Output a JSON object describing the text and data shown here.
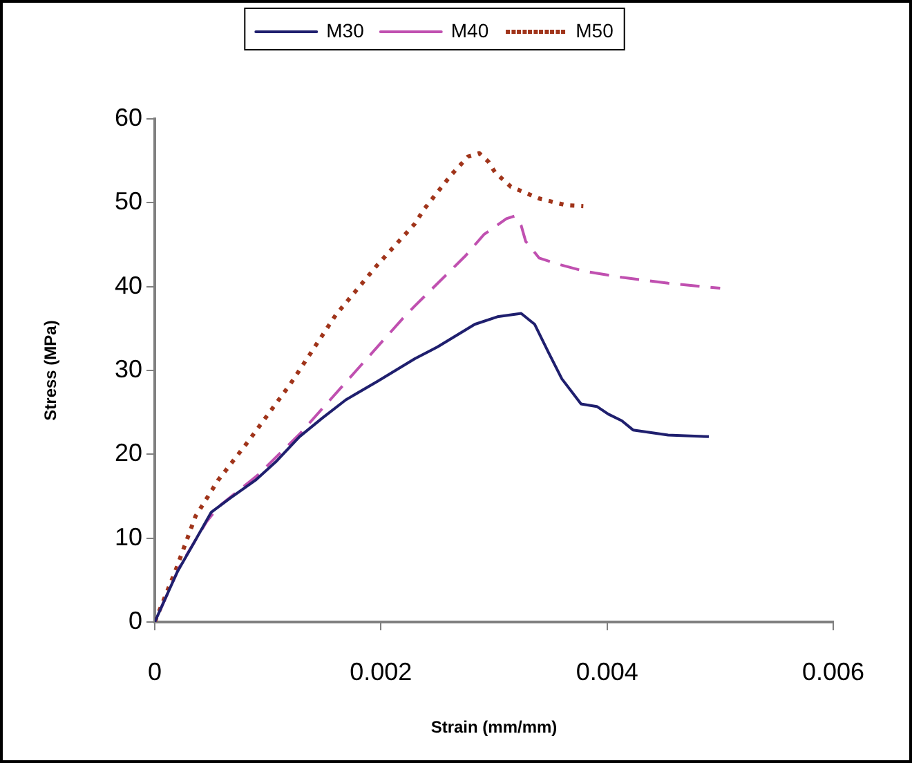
{
  "chart_data": {
    "type": "line",
    "xlabel": "Strain (mm/mm)",
    "ylabel": "Stress (MPa)",
    "xlim": [
      0,
      0.006
    ],
    "xticks": [
      0,
      0.002,
      0.004,
      0.006
    ],
    "ylim": [
      0,
      60
    ],
    "yticks": [
      0,
      10,
      20,
      30,
      40,
      50,
      60
    ],
    "grid": false,
    "legend": "top",
    "marker": "none",
    "series": [
      {
        "name": "M30",
        "color": "#1f1f6e",
        "line_style": "solid",
        "x": [
          0,
          0.0002,
          0.00034,
          0.0005,
          0.00067,
          0.00089,
          0.00107,
          0.00128,
          0.00148,
          0.00169,
          0.00197,
          0.0023,
          0.0025,
          0.00283,
          0.00303,
          0.00324,
          0.00336,
          0.00348,
          0.0036,
          0.00377,
          0.00391,
          0.00401,
          0.00413,
          0.00423,
          0.00454,
          0.0049
        ],
        "values": [
          0,
          6,
          9.3,
          13.1,
          14.8,
          16.9,
          19.1,
          22.1,
          24.3,
          26.5,
          28.7,
          31.4,
          32.8,
          35.5,
          36.4,
          36.8,
          35.5,
          32.2,
          29,
          26,
          25.7,
          24.8,
          24,
          22.9,
          22.3,
          22.1
        ]
      },
      {
        "name": "M40",
        "color": "#c050b0",
        "line_style": "dashed",
        "x": [
          0,
          0.00022,
          0.00046,
          0.00056,
          0.00091,
          0.00128,
          0.00169,
          0.00222,
          0.0023,
          0.00275,
          0.00291,
          0.00311,
          0.00318,
          0.00324,
          0.00328,
          0.0034,
          0.00356,
          0.00381,
          0.00413,
          0.00454,
          0.005
        ],
        "values": [
          0,
          6.6,
          12,
          13.7,
          17.5,
          22.4,
          28.6,
          36.6,
          37.7,
          43.7,
          46.2,
          48.1,
          48.4,
          47.3,
          45.4,
          43.4,
          42.7,
          41.8,
          41.1,
          40.4,
          39.8
        ]
      },
      {
        "name": "M50",
        "color": "#a0341a",
        "line_style": "dotted",
        "x": [
          0,
          0.00018,
          0.00036,
          0.00056,
          0.00083,
          0.0012,
          0.0016,
          0.00197,
          0.0023,
          0.00238,
          0.00262,
          0.00277,
          0.00287,
          0.00295,
          0.00301,
          0.00315,
          0.0034,
          0.00364,
          0.00379
        ],
        "values": [
          0,
          6,
          12.6,
          16.9,
          21.6,
          28.4,
          36.6,
          42.6,
          47.5,
          49.2,
          53.3,
          55.5,
          55.9,
          54.9,
          53.6,
          51.9,
          50.5,
          49.7,
          49.6
        ]
      }
    ]
  }
}
